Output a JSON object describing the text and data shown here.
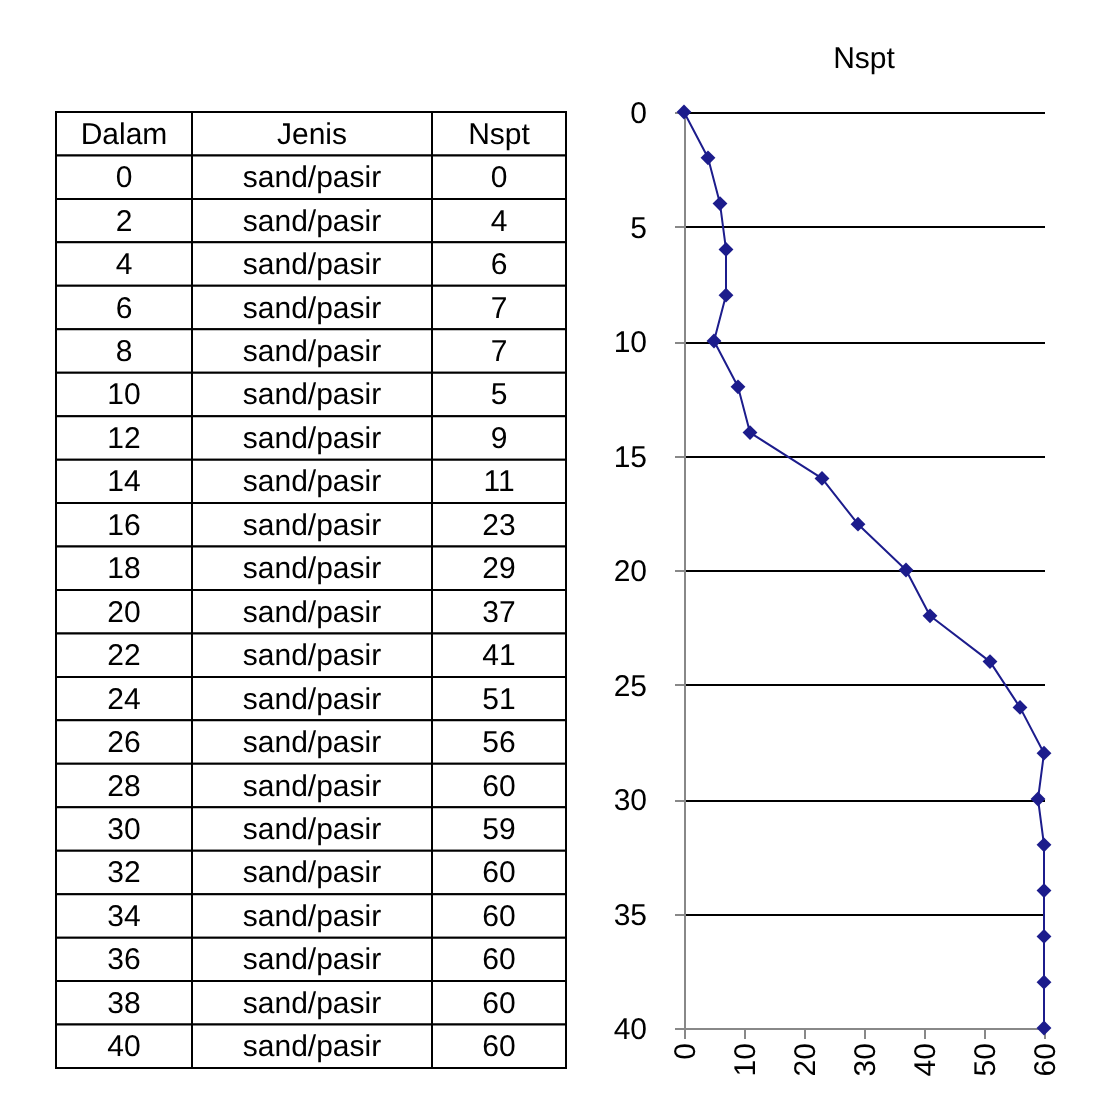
{
  "chart_data": {
    "type": "line",
    "title": "Nspt",
    "x": [
      0,
      4,
      6,
      7,
      7,
      5,
      9,
      11,
      23,
      29,
      37,
      41,
      51,
      56,
      60,
      59,
      60,
      60,
      60,
      60,
      60
    ],
    "series": [
      {
        "color": "#1c1c8c",
        "values": [
          0,
          2,
          4,
          6,
          8,
          10,
          12,
          14,
          16,
          18,
          20,
          22,
          24,
          26,
          28,
          30,
          32,
          34,
          36,
          38,
          40
        ]
      }
    ],
    "xlim": [
      0,
      60
    ],
    "xticks": [
      0,
      10,
      20,
      30,
      40,
      50,
      60
    ],
    "ylim": [
      40,
      0
    ],
    "yticks": [
      0,
      5,
      10,
      15,
      20,
      25,
      30,
      35,
      40
    ],
    "grid": "y",
    "marker": "diamond",
    "line_style": "solid",
    "annotations": [
      "Dalam",
      "Jenis",
      "Nspt",
      "0",
      "sand/pasir",
      "0",
      "2",
      "sand/pasir",
      "4",
      "4",
      "sand/pasir",
      "6",
      "6",
      "sand/pasir",
      "7",
      "8",
      "sand/pasir",
      "7",
      "10",
      "sand/pasir",
      "5",
      "12",
      "sand/pasir",
      "9",
      "14",
      "sand/pasir",
      "11",
      "16",
      "sand/pasir",
      "23",
      "18",
      "sand/pasir",
      "29",
      "20",
      "sand/pasir",
      "37",
      "22",
      "sand/pasir",
      "41",
      "24",
      "sand/pasir",
      "51",
      "26",
      "sand/pasir",
      "56",
      "28",
      "sand/pasir",
      "60",
      "30",
      "sand/pasir",
      "59",
      "32",
      "sand/pasir",
      "60",
      "34",
      "sand/pasir",
      "60",
      "36",
      "sand/pasir",
      "60",
      "38",
      "sand/pasir",
      "60",
      "40",
      "sand/pasir",
      "60"
    ]
  }
}
